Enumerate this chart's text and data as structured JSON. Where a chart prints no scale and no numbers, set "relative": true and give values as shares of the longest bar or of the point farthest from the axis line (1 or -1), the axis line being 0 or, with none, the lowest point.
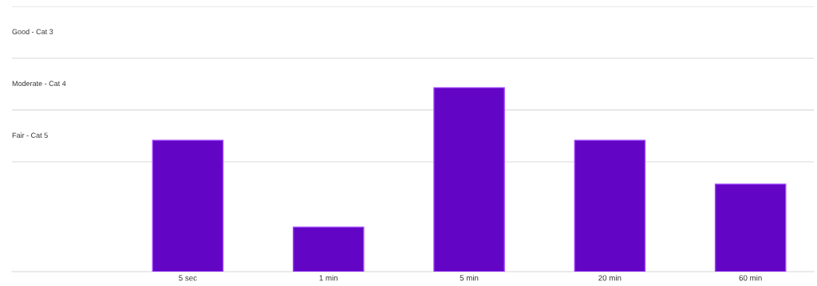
{
  "chart_data": {
    "type": "bar",
    "relative": true,
    "categories": [
      "5 sec",
      "1 min",
      "5 min",
      "20 min",
      "60 min"
    ],
    "values": [
      0.714,
      0.242,
      1.0,
      0.714,
      0.476
    ],
    "color": "#6205c4",
    "ref_lines": [
      {
        "axis": "y",
        "value": 0.597,
        "color": "#e0e0e0"
      },
      {
        "axis": "y",
        "value": 0.879,
        "color": "#e0e0e0"
      },
      {
        "axis": "y",
        "value": 1.16,
        "color": "#e0e0e0"
      },
      {
        "axis": "y",
        "value": 1.442,
        "color": "#e0e0e0"
      }
    ],
    "annotations": [
      "Fair - Cat 5",
      "Moderate - Cat 4",
      "Good - Cat 3"
    ]
  }
}
